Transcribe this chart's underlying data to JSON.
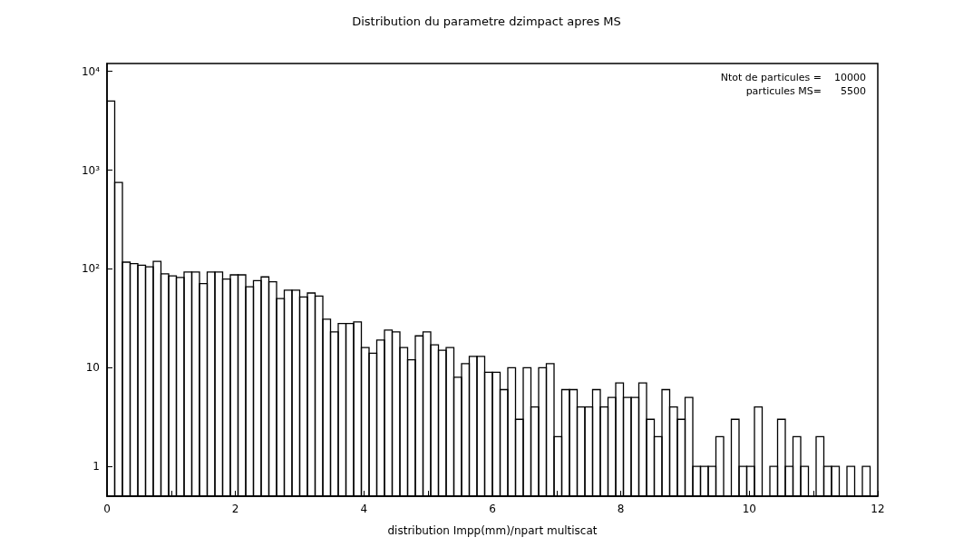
{
  "chart_data": {
    "type": "histogram",
    "title": "Distribution du parametre dzimpact apres MS",
    "xlabel": "distribution Impp(mm)/npart multiscat",
    "annotations": [
      "Ntot de particules =    10000",
      "particules MS=      5500"
    ],
    "color": "#000000",
    "log": "y",
    "grid": false,
    "legend": false,
    "xlim": [
      0,
      12
    ],
    "xticks": [
      0,
      {
        "value": 1,
        "label": null
      },
      2,
      {
        "value": 3,
        "label": null
      },
      4,
      {
        "value": 5,
        "label": null
      },
      6,
      {
        "value": 7,
        "label": null
      },
      8,
      {
        "value": 9,
        "label": null
      },
      10,
      {
        "value": 11,
        "label": null
      },
      12
    ],
    "ylim": [
      0.5,
      12000
    ],
    "yticks": [
      1,
      10,
      {
        "value": 100,
        "label": "10²"
      },
      {
        "value": 1000,
        "label": "10³"
      },
      {
        "value": 10000,
        "label": "10⁴"
      }
    ],
    "bins": [
      0,
      0.12,
      0.24,
      0.36,
      0.48,
      0.6,
      0.72,
      0.84,
      0.96,
      1.08,
      1.2,
      1.32,
      1.44,
      1.56,
      1.68,
      1.8,
      1.92,
      2.04,
      2.16,
      2.28,
      2.4,
      2.52,
      2.64,
      2.76,
      2.88,
      3,
      3.12,
      3.24,
      3.36,
      3.48,
      3.6,
      3.72,
      3.84,
      3.96,
      4.08,
      4.2,
      4.32,
      4.44,
      4.56,
      4.68,
      4.8,
      4.92,
      5.04,
      5.16,
      5.28,
      5.4,
      5.52,
      5.64,
      5.76,
      5.88,
      6,
      6.12,
      6.24,
      6.36,
      6.48,
      6.6,
      6.72,
      6.84,
      6.96,
      7.08,
      7.2,
      7.32,
      7.44,
      7.56,
      7.68,
      7.8,
      7.92,
      8.04,
      8.16,
      8.28,
      8.4,
      8.52,
      8.64,
      8.76,
      8.88,
      9,
      9.12,
      9.24,
      9.36,
      9.48,
      9.6,
      9.72,
      9.84,
      9.96,
      10.08,
      10.2,
      10.32,
      10.44,
      10.56,
      10.68,
      10.8,
      10.92,
      11.04,
      11.16,
      11.28,
      11.4,
      11.52,
      11.64,
      11.76,
      11.88,
      12
    ],
    "values": [
      5000,
      750,
      117,
      113,
      109,
      105,
      119,
      89,
      85,
      82,
      93,
      93,
      71,
      93,
      93,
      79,
      87,
      87,
      66,
      76,
      83,
      74,
      50,
      61,
      61,
      52,
      57,
      53,
      31,
      23,
      28,
      28,
      29,
      16,
      14,
      19,
      24,
      23,
      16,
      12,
      21,
      23,
      17,
      15,
      16,
      8,
      11,
      13,
      13,
      9,
      9,
      6,
      10,
      3,
      10,
      4,
      10,
      11,
      2,
      6,
      6,
      4,
      4,
      6,
      4,
      5,
      7,
      5,
      5,
      7,
      3,
      2,
      6,
      4,
      3,
      5,
      1,
      1,
      1,
      2,
      null,
      3,
      1,
      1,
      4,
      null,
      1,
      3,
      1,
      2,
      1,
      null,
      2,
      1,
      1,
      null,
      1,
      null,
      1,
      null
    ]
  }
}
